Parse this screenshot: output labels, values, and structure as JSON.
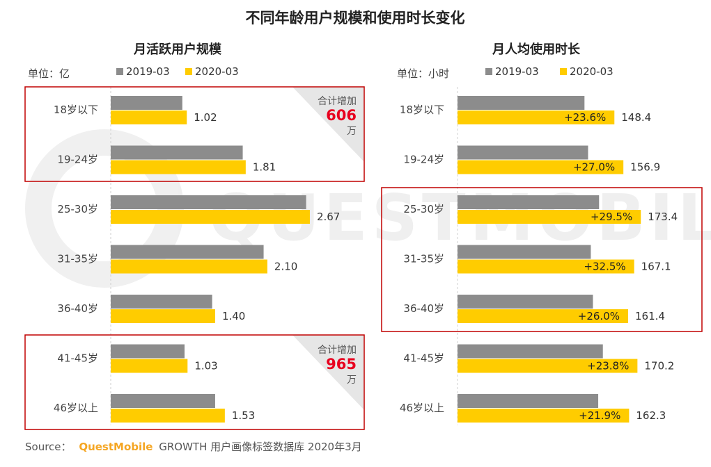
{
  "chart_data": {
    "type": "bar",
    "title": "不同年龄用户规模和使用时长变化",
    "categories": [
      "18岁以下",
      "19-24岁",
      "25-30岁",
      "31-35岁",
      "36-40岁",
      "41-45岁",
      "46岁以上"
    ],
    "panels": [
      {
        "id": "mau",
        "title": "月活跃用户规模",
        "unit_label": "单位：亿",
        "series": [
          {
            "name": "2019-03",
            "values": [
              0.96,
              1.77,
              2.62,
              2.05,
              1.36,
              0.99,
              1.4
            ]
          },
          {
            "name": "2020-03",
            "values": [
              1.02,
              1.81,
              2.67,
              2.1,
              1.4,
              1.03,
              1.53
            ]
          }
        ],
        "value_labels": [
          "1.02",
          "1.81",
          "2.67",
          "2.10",
          "1.40",
          "1.03",
          "1.53"
        ],
        "xlim": [
          0,
          3.3
        ],
        "callouts": [
          {
            "label": "合计增加",
            "value": "606",
            "unit": "万"
          },
          {
            "label": "合计增加",
            "value": "965",
            "unit": "万"
          }
        ]
      },
      {
        "id": "time",
        "title": "月人均使用时长",
        "unit_label": "单位：小时",
        "series": [
          {
            "name": "2019-03",
            "values": [
              120.1,
              123.5,
              133.9,
              126.1,
              128.1,
              137.5,
              133.1
            ]
          },
          {
            "name": "2020-03",
            "values": [
              148.4,
              156.9,
              173.4,
              167.1,
              161.4,
              170.2,
              162.3
            ]
          }
        ],
        "value_labels": [
          "148.4",
          "156.9",
          "173.4",
          "167.1",
          "161.4",
          "170.2",
          "162.3"
        ],
        "growth_labels": [
          "+23.6%",
          "+27.0%",
          "+29.5%",
          "+32.5%",
          "+26.0%",
          "+23.8%",
          "+21.9%"
        ],
        "xlim": [
          0,
          210
        ]
      }
    ],
    "legend": [
      "2019-03",
      "2020-03"
    ]
  },
  "colors": {
    "bar_2019": "#8c8c8c",
    "bar_2020": "#ffcc00",
    "highlight_box": "#c00000",
    "callout_value": "#e8001f",
    "brand": "#f5a623",
    "text": "#333333"
  },
  "source": {
    "prefix": "Source：",
    "brand": "QuestMobile",
    "rest": "GROWTH 用户画像标签数据库 2020年3月"
  },
  "watermark": "QUESTMOBILE"
}
